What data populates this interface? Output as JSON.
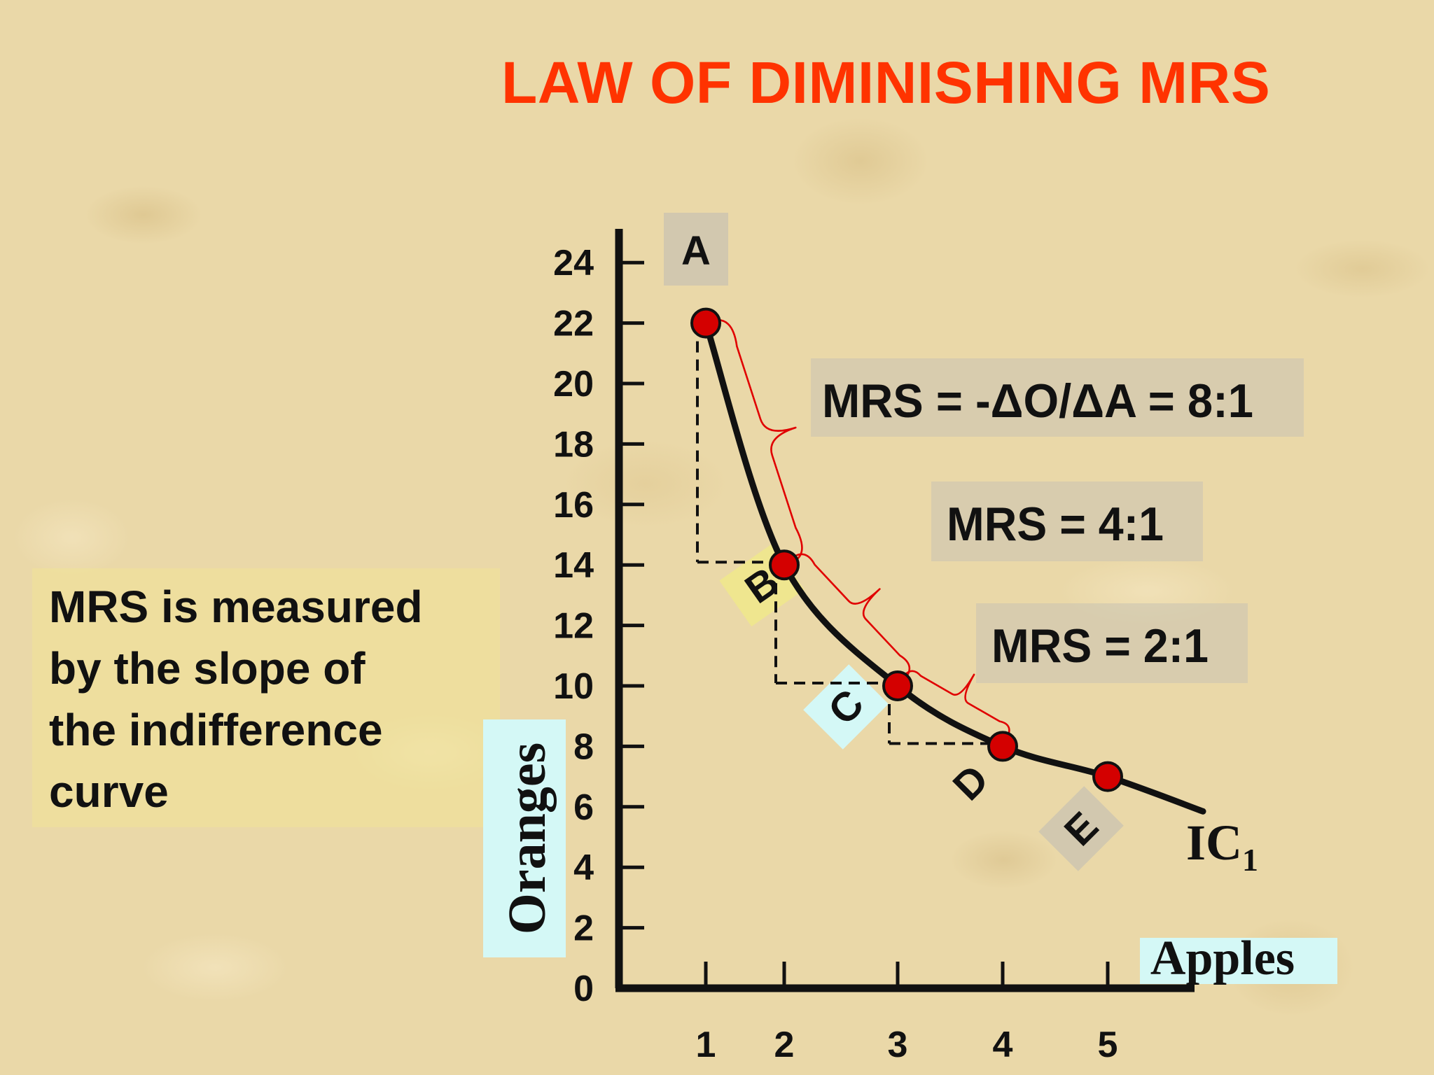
{
  "title": "LAW OF DIMINISHING MRS",
  "note": {
    "lines": [
      "MRS is measured",
      "by the slope of",
      "the indifference",
      "curve"
    ]
  },
  "chart_data": {
    "type": "line",
    "title": "LAW OF DIMINISHING MRS",
    "xlabel": "Apples",
    "ylabel": "Oranges",
    "x_ticks": [
      1,
      2,
      3,
      4,
      5
    ],
    "y_ticks": [
      0,
      2,
      4,
      6,
      8,
      10,
      12,
      14,
      16,
      18,
      20,
      22,
      24
    ],
    "xlim": [
      0.1,
      5.9
    ],
    "ylim": [
      0,
      24
    ],
    "series": [
      {
        "name": "IC1",
        "label": "IC",
        "label_subscript": "1",
        "points": [
          {
            "label": "A",
            "x": 1,
            "y": 22
          },
          {
            "label": "B",
            "x": 2,
            "y": 14
          },
          {
            "label": "C",
            "x": 3,
            "y": 10
          },
          {
            "label": "D",
            "x": 4,
            "y": 8
          },
          {
            "label": "E",
            "x": 5,
            "y": 7
          }
        ]
      }
    ],
    "annotations": [
      {
        "text": "MRS = -ΔO/ΔA = 8:1",
        "from": "A",
        "to": "B"
      },
      {
        "text": "MRS = 4:1",
        "from": "B",
        "to": "C"
      },
      {
        "text": "MRS = 2:1",
        "from": "C",
        "to": "D"
      }
    ]
  },
  "colors": {
    "title": "#ff3300",
    "point_fill": "#d40000",
    "brace": "#e00000",
    "curve": "#111111",
    "label_cyan": "#d4f8f6",
    "label_gray": "#c8c2b2",
    "label_yellow": "#f0e88c"
  }
}
